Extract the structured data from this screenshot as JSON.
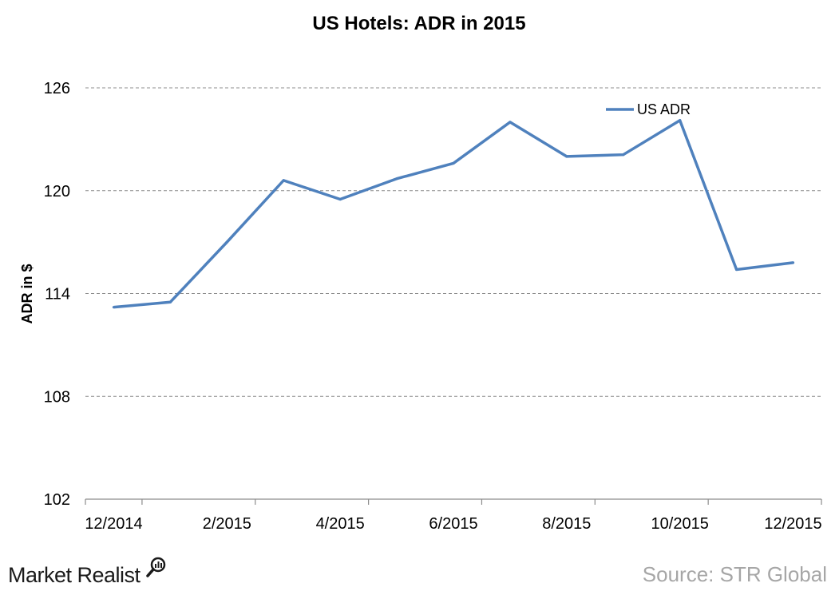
{
  "chart_data": {
    "type": "line",
    "title": "US Hotels: ADR in 2015",
    "ylabel": "ADR in $",
    "xlabel": "",
    "ylim": [
      102,
      126
    ],
    "yticks": [
      102,
      108,
      114,
      120,
      126
    ],
    "xtick_labels": [
      "12/2014",
      "2/2015",
      "4/2015",
      "6/2015",
      "8/2015",
      "10/2015",
      "12/2015"
    ],
    "x": [
      "12/2014",
      "1/2015",
      "2/2015",
      "3/2015",
      "4/2015",
      "5/2015",
      "6/2015",
      "7/2015",
      "8/2015",
      "9/2015",
      "10/2015",
      "11/2015",
      "12/2015"
    ],
    "series": [
      {
        "name": "US ADR",
        "color": "#4f81bd",
        "values": [
          113.2,
          113.5,
          117.0,
          120.6,
          119.5,
          120.7,
          121.6,
          124.0,
          122.0,
          122.1,
          124.1,
          115.4,
          115.8
        ]
      }
    ],
    "grid": true,
    "legend_position": "top-right"
  },
  "footer": {
    "brand": "Market Realist",
    "brand_icon": "magnifier-chart-icon",
    "source": "Source: STR Global"
  }
}
